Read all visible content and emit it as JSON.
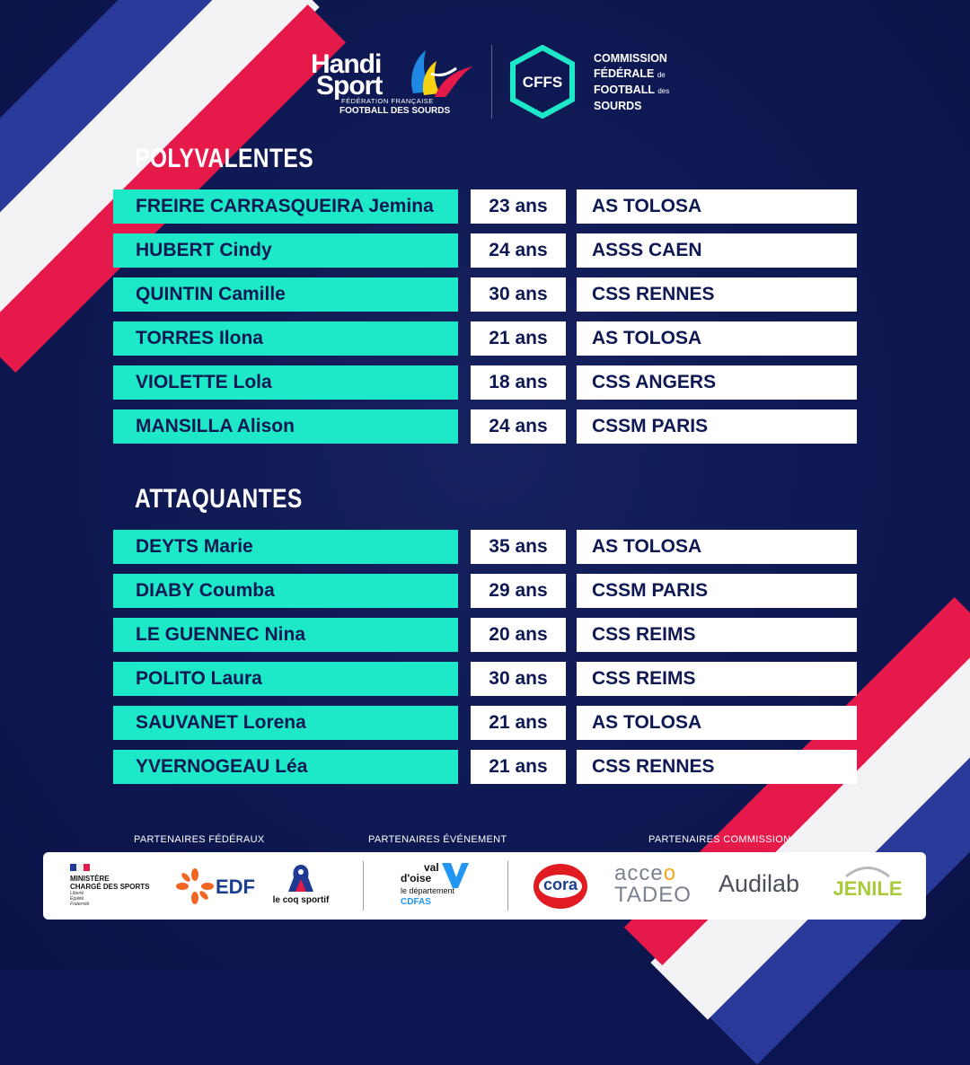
{
  "header": {
    "handisport": {
      "line1": "Handi",
      "line2": "Sport",
      "federation": "FÉDÉRATION FRANÇAISE",
      "subtitle": "FOOTBALL DES SOURDS"
    },
    "cfFs": {
      "badge": "CFFS",
      "line1": "COMMISSION",
      "line2": "FÉDÉRALE",
      "line2_small": "de",
      "line3": "FOOTBALL",
      "line3_small": "des",
      "line4": "SOURDS"
    }
  },
  "sections": [
    {
      "title": "POLYVALENTES",
      "players": [
        {
          "name": "FREIRE CARRASQUEIRA Jemina",
          "age": "23 ans",
          "club": "AS TOLOSA"
        },
        {
          "name": "HUBERT Cindy",
          "age": "24 ans",
          "club": "ASSS CAEN"
        },
        {
          "name": "QUINTIN Camille",
          "age": "30 ans",
          "club": "CSS RENNES"
        },
        {
          "name": "TORRES Ilona",
          "age": "21 ans",
          "club": "AS TOLOSA"
        },
        {
          "name": "VIOLETTE Lola",
          "age": "18 ans",
          "club": "CSS ANGERS"
        },
        {
          "name": "MANSILLA Alison",
          "age": "24 ans",
          "club": "CSSM PARIS"
        }
      ]
    },
    {
      "title": "ATTAQUANTES",
      "players": [
        {
          "name": "DEYTS Marie",
          "age": "35 ans",
          "club": "AS TOLOSA"
        },
        {
          "name": "DIABY Coumba",
          "age": "29 ans",
          "club": "CSSM PARIS"
        },
        {
          "name": "LE GUENNEC Nina",
          "age": "20 ans",
          "club": "CSS REIMS"
        },
        {
          "name": "POLITO Laura",
          "age": "30 ans",
          "club": "CSS REIMS"
        },
        {
          "name": "SAUVANET Lorena",
          "age": "21 ans",
          "club": "AS TOLOSA"
        },
        {
          "name": "YVERNOGEAU Léa",
          "age": "21 ans",
          "club": "CSS RENNES"
        }
      ]
    }
  ],
  "partners": {
    "labels": {
      "federaux": "PARTENAIRES FÉDÉRAUX",
      "evenement": "PARTENAIRES ÉVÉNEMENT",
      "commission": "PARTENAIRES COMMISSION"
    },
    "ministere": {
      "line1": "MINISTÈRE",
      "line2": "CHARGÉ DES SPORTS",
      "motto1": "Liberté",
      "motto2": "Égalité",
      "motto3": "Fraternité"
    },
    "edf": "EDF",
    "lecoq": "le coq sportif",
    "valdoise": {
      "line1": "val",
      "line2": "d'oise",
      "line3": "le département",
      "line4": "CDFAS"
    },
    "cora": "cora",
    "acceo": {
      "line1": "acce",
      "line2": "tadeo"
    },
    "audilab": "Audilab",
    "jenile": "JENILE"
  },
  "colors": {
    "background": "#0c1550",
    "name_cell": "#1de9c8",
    "value_cell": "#ffffff",
    "text_dark": "#0e1852",
    "stripe_red": "#e6194b",
    "stripe_blue": "#2a3a9a"
  }
}
